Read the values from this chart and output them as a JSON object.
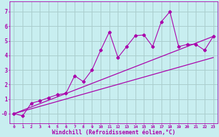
{
  "xlabel": "Windchill (Refroidissement éolien,°C)",
  "bg_color": "#c8eef0",
  "grid_color": "#aacccc",
  "line_color": "#aa00aa",
  "xlim_min": -0.5,
  "xlim_max": 23.5,
  "ylim_min": -0.65,
  "ylim_max": 7.7,
  "xticks": [
    0,
    1,
    2,
    3,
    4,
    5,
    6,
    7,
    8,
    9,
    10,
    11,
    12,
    13,
    14,
    15,
    16,
    17,
    18,
    19,
    20,
    21,
    22,
    23
  ],
  "yticks": [
    0,
    1,
    2,
    3,
    4,
    5,
    6,
    7
  ],
  "ytick_labels": [
    "-0",
    "1",
    "2",
    "3",
    "4",
    "5",
    "6",
    "7"
  ],
  "scatter_x": [
    0,
    1,
    2,
    3,
    4,
    5,
    6,
    7,
    8,
    9,
    10,
    11,
    12,
    13,
    14,
    15,
    16,
    17,
    18,
    19,
    20,
    21,
    22,
    23
  ],
  "scatter_y": [
    0.0,
    -0.15,
    0.72,
    0.88,
    1.1,
    1.3,
    1.4,
    2.6,
    2.2,
    3.0,
    4.35,
    5.6,
    3.85,
    4.6,
    5.35,
    5.4,
    4.6,
    6.3,
    7.0,
    4.6,
    4.75,
    4.75,
    4.35,
    5.3
  ],
  "line1_x": [
    0,
    23
  ],
  "line1_y": [
    0.0,
    5.3
  ],
  "line2_x": [
    0,
    23
  ],
  "line2_y": [
    0.0,
    3.85
  ]
}
